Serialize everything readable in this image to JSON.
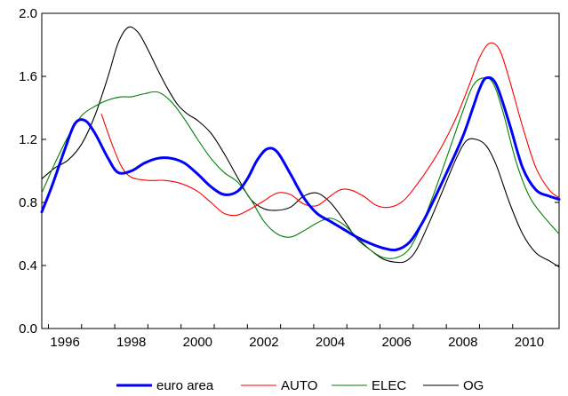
{
  "chart_data": {
    "type": "line",
    "title": "",
    "xlabel": "",
    "ylabel": "",
    "xlim": [
      1995.3,
      2010.9
    ],
    "ylim": [
      0.0,
      2.0
    ],
    "yticks": [
      "0.0",
      "0.4",
      "0.8",
      "1.2",
      "1.6",
      "2.0"
    ],
    "xticks": [
      "1996",
      "1998",
      "2000",
      "2002",
      "2004",
      "2006",
      "2008",
      "2010"
    ],
    "grid": false,
    "legend_position": "bottom",
    "series": [
      {
        "name": "euro area",
        "color": "#0000ff",
        "x": [
          1995.3,
          1995.6,
          1996.0,
          1996.3,
          1996.6,
          1996.9,
          1997.3,
          1997.6,
          1998.0,
          1998.4,
          1998.8,
          1999.2,
          1999.6,
          2000.0,
          2000.4,
          2000.8,
          2001.2,
          2001.5,
          2001.8,
          2002.1,
          2002.4,
          2002.8,
          2003.2,
          2003.6,
          2004.0,
          2004.4,
          2004.8,
          2005.2,
          2005.6,
          2006.0,
          2006.4,
          2006.8,
          2007.2,
          2007.6,
          2008.0,
          2008.3,
          2008.5,
          2008.7,
          2009.0,
          2009.4,
          2009.8,
          2010.2,
          2010.6,
          2010.9
        ],
        "values": [
          0.74,
          0.9,
          1.14,
          1.3,
          1.32,
          1.24,
          1.08,
          0.99,
          1.0,
          1.05,
          1.08,
          1.08,
          1.05,
          0.98,
          0.9,
          0.85,
          0.87,
          0.95,
          1.07,
          1.14,
          1.12,
          0.98,
          0.83,
          0.73,
          0.68,
          0.63,
          0.58,
          0.54,
          0.51,
          0.5,
          0.55,
          0.68,
          0.85,
          1.03,
          1.22,
          1.4,
          1.52,
          1.59,
          1.55,
          1.3,
          1.02,
          0.88,
          0.84,
          0.82
        ]
      },
      {
        "name": "AUTO",
        "color": "#ff0000",
        "x": [
          1997.1,
          1997.4,
          1997.7,
          1998.0,
          1998.5,
          1999.0,
          1999.5,
          2000.0,
          2000.4,
          2000.8,
          2001.2,
          2001.6,
          2002.0,
          2002.4,
          2002.8,
          2003.2,
          2003.6,
          2004.0,
          2004.3,
          2004.6,
          2005.0,
          2005.4,
          2005.8,
          2006.2,
          2006.6,
          2007.0,
          2007.4,
          2007.8,
          2008.2,
          2008.5,
          2008.8,
          2009.1,
          2009.4,
          2009.8,
          2010.2,
          2010.6,
          2010.9
        ],
        "values": [
          1.36,
          1.18,
          1.03,
          0.96,
          0.94,
          0.94,
          0.92,
          0.87,
          0.8,
          0.73,
          0.72,
          0.76,
          0.81,
          0.86,
          0.85,
          0.79,
          0.78,
          0.84,
          0.88,
          0.88,
          0.84,
          0.78,
          0.77,
          0.81,
          0.91,
          1.03,
          1.17,
          1.34,
          1.55,
          1.72,
          1.81,
          1.77,
          1.58,
          1.28,
          1.02,
          0.88,
          0.83
        ]
      },
      {
        "name": "ELEC",
        "color": "#008000",
        "x": [
          1995.3,
          1995.7,
          1996.1,
          1996.5,
          1996.9,
          1997.3,
          1997.7,
          1998.0,
          1998.4,
          1998.8,
          1999.2,
          1999.6,
          2000.0,
          2000.4,
          2000.8,
          2001.2,
          2001.6,
          2002.0,
          2002.4,
          2002.8,
          2003.2,
          2003.6,
          2004.0,
          2004.4,
          2004.8,
          2005.2,
          2005.6,
          2006.0,
          2006.4,
          2006.8,
          2007.2,
          2007.6,
          2008.0,
          2008.3,
          2008.6,
          2008.9,
          2009.2,
          2009.6,
          2010.0,
          2010.4,
          2010.9
        ],
        "values": [
          0.86,
          1.05,
          1.22,
          1.35,
          1.41,
          1.45,
          1.47,
          1.47,
          1.49,
          1.5,
          1.44,
          1.33,
          1.2,
          1.08,
          0.99,
          0.93,
          0.82,
          0.68,
          0.6,
          0.58,
          0.62,
          0.67,
          0.7,
          0.66,
          0.58,
          0.5,
          0.45,
          0.45,
          0.51,
          0.68,
          0.9,
          1.14,
          1.38,
          1.54,
          1.59,
          1.56,
          1.38,
          1.06,
          0.84,
          0.72,
          0.6
        ]
      },
      {
        "name": "OG",
        "color": "#000000",
        "x": [
          1995.3,
          1995.7,
          1996.1,
          1996.5,
          1996.9,
          1997.3,
          1997.6,
          1997.9,
          1998.2,
          1998.5,
          1998.8,
          1999.1,
          1999.4,
          1999.7,
          2000.0,
          2000.4,
          2000.8,
          2001.2,
          2001.6,
          2002.0,
          2002.4,
          2002.8,
          2003.2,
          2003.6,
          2004.0,
          2004.4,
          2004.8,
          2005.2,
          2005.6,
          2006.0,
          2006.3,
          2006.6,
          2007.0,
          2007.4,
          2007.8,
          2008.1,
          2008.4,
          2008.7,
          2009.0,
          2009.4,
          2009.8,
          2010.2,
          2010.6,
          2010.9
        ],
        "values": [
          0.95,
          1.02,
          1.07,
          1.17,
          1.35,
          1.6,
          1.81,
          1.91,
          1.88,
          1.77,
          1.64,
          1.52,
          1.42,
          1.36,
          1.32,
          1.24,
          1.11,
          0.96,
          0.82,
          0.76,
          0.75,
          0.77,
          0.84,
          0.86,
          0.8,
          0.69,
          0.57,
          0.5,
          0.44,
          0.42,
          0.43,
          0.5,
          0.68,
          0.88,
          1.08,
          1.19,
          1.2,
          1.16,
          1.04,
          0.8,
          0.6,
          0.48,
          0.43,
          0.39
        ]
      }
    ]
  }
}
